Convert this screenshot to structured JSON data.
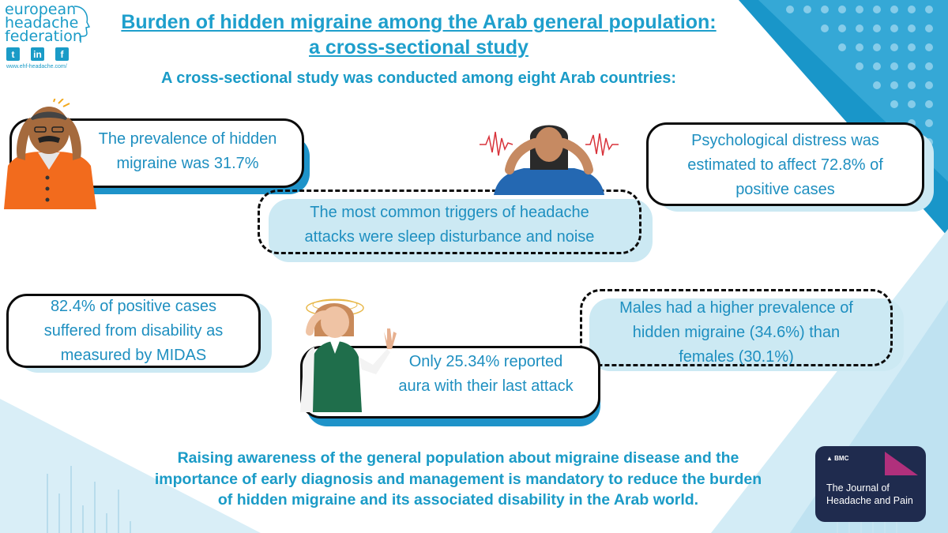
{
  "header": {
    "org_name_lines": [
      "european",
      "headache",
      "federation"
    ],
    "social_icons": [
      "twitter-icon",
      "linkedin-icon",
      "facebook-icon"
    ],
    "url": "www.ehf-headache.com/",
    "title_line1": "Burden of hidden migraine among the Arab general population:",
    "title_line2": "a cross-sectional study",
    "subtitle": "A cross-sectional study was conducted among eight Arab countries:"
  },
  "findings": {
    "prevalence": [
      "The prevalence of hidden",
      "migraine was 31.7%"
    ],
    "distress": [
      "Psychological distress was",
      "estimated to affect 72.8% of",
      "positive cases"
    ],
    "triggers": [
      "The most common triggers of headache",
      "attacks were sleep disturbance and noise"
    ],
    "disability": [
      "82.4% of positive cases",
      "suffered from disability as",
      "measured by MIDAS"
    ],
    "gender": [
      "Males had a higher prevalence of",
      "hidden migraine (34.6%) than",
      "females (30.1%)"
    ],
    "aura": [
      "Only 25.34% reported",
      "aura with their last attack"
    ]
  },
  "conclusion": [
    "Raising awareness of the general population about migraine disease and the",
    "importance of early diagnosis and management is mandatory to reduce the burden",
    "of hidden migraine and its associated disability in the Arab world."
  ],
  "journal": {
    "publisher": "BMC",
    "name_lines": [
      "The Journal of",
      "Headache and Pain"
    ]
  },
  "colors": {
    "accent": "#1e9fcc",
    "box_shadow": "#1e93c9",
    "light_blue": "#cce9f3",
    "journal_bg": "#1f2b4e",
    "journal_accent": "#b0307c"
  }
}
